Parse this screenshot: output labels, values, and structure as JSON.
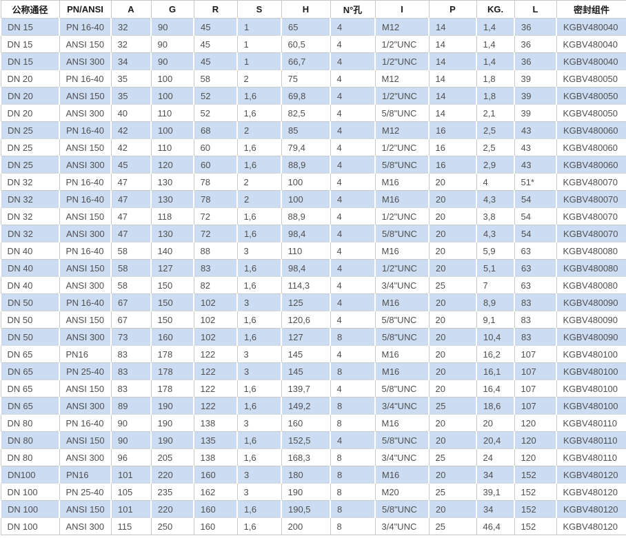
{
  "colors": {
    "alt_row_background": "#ccddf3",
    "plain_row_background": "#ffffff",
    "grid_border": "#c8c8c8",
    "header_text": "#1a1a1a",
    "cell_text": "#4f4f4f"
  },
  "table": {
    "headers": [
      "公称通径",
      "PN/ANSI",
      "A",
      "G",
      "R",
      "S",
      "H",
      "N°孔",
      "I",
      "P",
      "KG.",
      "L",
      "密封组件"
    ],
    "rows": [
      [
        "DN 15",
        "PN 16-40",
        "32",
        "90",
        "45",
        "1",
        "65",
        "4",
        "M12",
        "14",
        "1,4",
        "36",
        "KGBV480040"
      ],
      [
        "DN 15",
        "ANSI 150",
        "32",
        "90",
        "45",
        "1",
        "60,5",
        "4",
        "1/2\"UNC",
        "14",
        "1,4",
        "36",
        "KGBV480040"
      ],
      [
        "DN 15",
        "ANSI 300",
        "34",
        "90",
        "45",
        "1",
        "66,7",
        "4",
        "1/2\"UNC",
        "14",
        "1,4",
        "36",
        "KGBV480040"
      ],
      [
        "DN 20",
        "PN 16-40",
        "35",
        "100",
        "58",
        "2",
        "75",
        "4",
        "M12",
        "14",
        "1,8",
        "39",
        "KGBV480050"
      ],
      [
        "DN 20",
        "ANSI 150",
        "35",
        "100",
        "52",
        "1,6",
        "69,8",
        "4",
        "1/2\"UNC",
        "14",
        "1,8",
        "39",
        "KGBV480050"
      ],
      [
        "DN 20",
        "ANSI 300",
        "40",
        "110",
        "52",
        "1,6",
        "82,5",
        "4",
        "5/8\"UNC",
        "14",
        "2,1",
        "39",
        "KGBV480050"
      ],
      [
        "DN 25",
        "PN 16-40",
        "42",
        "100",
        "68",
        "2",
        "85",
        "4",
        "M12",
        "16",
        "2,5",
        "43",
        "KGBV480060"
      ],
      [
        "DN 25",
        "ANSI 150",
        "42",
        "110",
        "60",
        "1,6",
        "79,4",
        "4",
        "1/2\"UNC",
        "16",
        "2,5",
        "43",
        "KGBV480060"
      ],
      [
        "DN 25",
        "ANSI 300",
        "45",
        "120",
        "60",
        "1,6",
        "88,9",
        "4",
        "5/8\"UNC",
        "16",
        "2,9",
        "43",
        "KGBV480060"
      ],
      [
        "DN 32",
        "PN 16-40",
        "47",
        "130",
        "78",
        "2",
        "100",
        "4",
        "M16",
        "20",
        "4",
        "51*",
        "KGBV480070"
      ],
      [
        "DN 32",
        "PN 16-40",
        "47",
        "130",
        "78",
        "2",
        "100",
        "4",
        "M16",
        "20",
        "4,3",
        "54",
        "KGBV480070"
      ],
      [
        "DN 32",
        "ANSI 150",
        "47",
        "118",
        "72",
        "1,6",
        "88,9",
        "4",
        "1/2\"UNC",
        "20",
        "3,8",
        "54",
        "KGBV480070"
      ],
      [
        "DN 32",
        "ANSI 300",
        "47",
        "130",
        "72",
        "1,6",
        "98,4",
        "4",
        "5/8\"UNC",
        "20",
        "4,3",
        "54",
        "KGBV480070"
      ],
      [
        "DN 40",
        "PN 16-40",
        "58",
        "140",
        "88",
        "3",
        "110",
        "4",
        "M16",
        "20",
        "5,9",
        "63",
        "KGBV480080"
      ],
      [
        "DN 40",
        "ANSI 150",
        "58",
        "127",
        "83",
        "1,6",
        "98,4",
        "4",
        "1/2\"UNC",
        "20",
        "5,1",
        "63",
        "KGBV480080"
      ],
      [
        "DN 40",
        "ANSI 300",
        "58",
        "150",
        "82",
        "1,6",
        "114,3",
        "4",
        "3/4\"UNC",
        "25",
        "7",
        "63",
        "KGBV480080"
      ],
      [
        "DN 50",
        "PN 16-40",
        "67",
        "150",
        "102",
        "3",
        "125",
        "4",
        "M16",
        "20",
        "8,9",
        "83",
        "KGBV480090"
      ],
      [
        "DN 50",
        "ANSI 150",
        "67",
        "150",
        "102",
        "1,6",
        "120,6",
        "4",
        "5/8\"UNC",
        "20",
        "9,1",
        "83",
        "KGBV480090"
      ],
      [
        "DN 50",
        "ANSI 300",
        "73",
        "160",
        "102",
        "1,6",
        "127",
        "8",
        "5/8\"UNC",
        "20",
        "10,4",
        "83",
        "KGBV480090"
      ],
      [
        "DN 65",
        "PN16",
        "83",
        "178",
        "122",
        "3",
        "145",
        "4",
        "M16",
        "20",
        "16,2",
        "107",
        "KGBV480100"
      ],
      [
        "DN 65",
        "PN 25-40",
        "83",
        "178",
        "122",
        "3",
        "145",
        "8",
        "M16",
        "20",
        "16,1",
        "107",
        "KGBV480100"
      ],
      [
        "DN 65",
        "ANSI 150",
        "83",
        "178",
        "122",
        "1,6",
        "139,7",
        "4",
        "5/8\"UNC",
        "20",
        "16,4",
        "107",
        "KGBV480100"
      ],
      [
        "DN 65",
        "ANSI 300",
        "89",
        "190",
        "122",
        "1,6",
        "149,2",
        "8",
        "3/4\"UNC",
        "25",
        "18,6",
        "107",
        "KGBV480100"
      ],
      [
        "DN 80",
        "PN 16-40",
        "90",
        "190",
        "138",
        "3",
        "160",
        "8",
        "M16",
        "20",
        "20",
        "120",
        "KGBV480110"
      ],
      [
        "DN 80",
        "ANSI 150",
        "90",
        "190",
        "135",
        "1,6",
        "152,5",
        "4",
        "5/8\"UNC",
        "20",
        "20,4",
        "120",
        "KGBV480110"
      ],
      [
        "DN 80",
        "ANSI 300",
        "96",
        "205",
        "138",
        "1,6",
        "168,3",
        "8",
        "3/4\"UNC",
        "25",
        "24",
        "120",
        "KGBV480110"
      ],
      [
        "DN100",
        "PN16",
        "101",
        "220",
        "160",
        "3",
        "180",
        "8",
        "M16",
        "20",
        "34",
        "152",
        "KGBV480120"
      ],
      [
        "DN 100",
        "PN 25-40",
        "105",
        "235",
        "162",
        "3",
        "190",
        "8",
        "M20",
        "25",
        "39,1",
        "152",
        "KGBV480120"
      ],
      [
        "DN 100",
        "ANSI 150",
        "101",
        "220",
        "160",
        "1,6",
        "190,5",
        "8",
        "5/8\"UNC",
        "20",
        "34",
        "152",
        "KGBV480120"
      ],
      [
        "DN 100",
        "ANSI 300",
        "115",
        "250",
        "160",
        "1,6",
        "200",
        "8",
        "3/4\"UNC",
        "25",
        "46,4",
        "152",
        "KGBV480120"
      ]
    ]
  }
}
